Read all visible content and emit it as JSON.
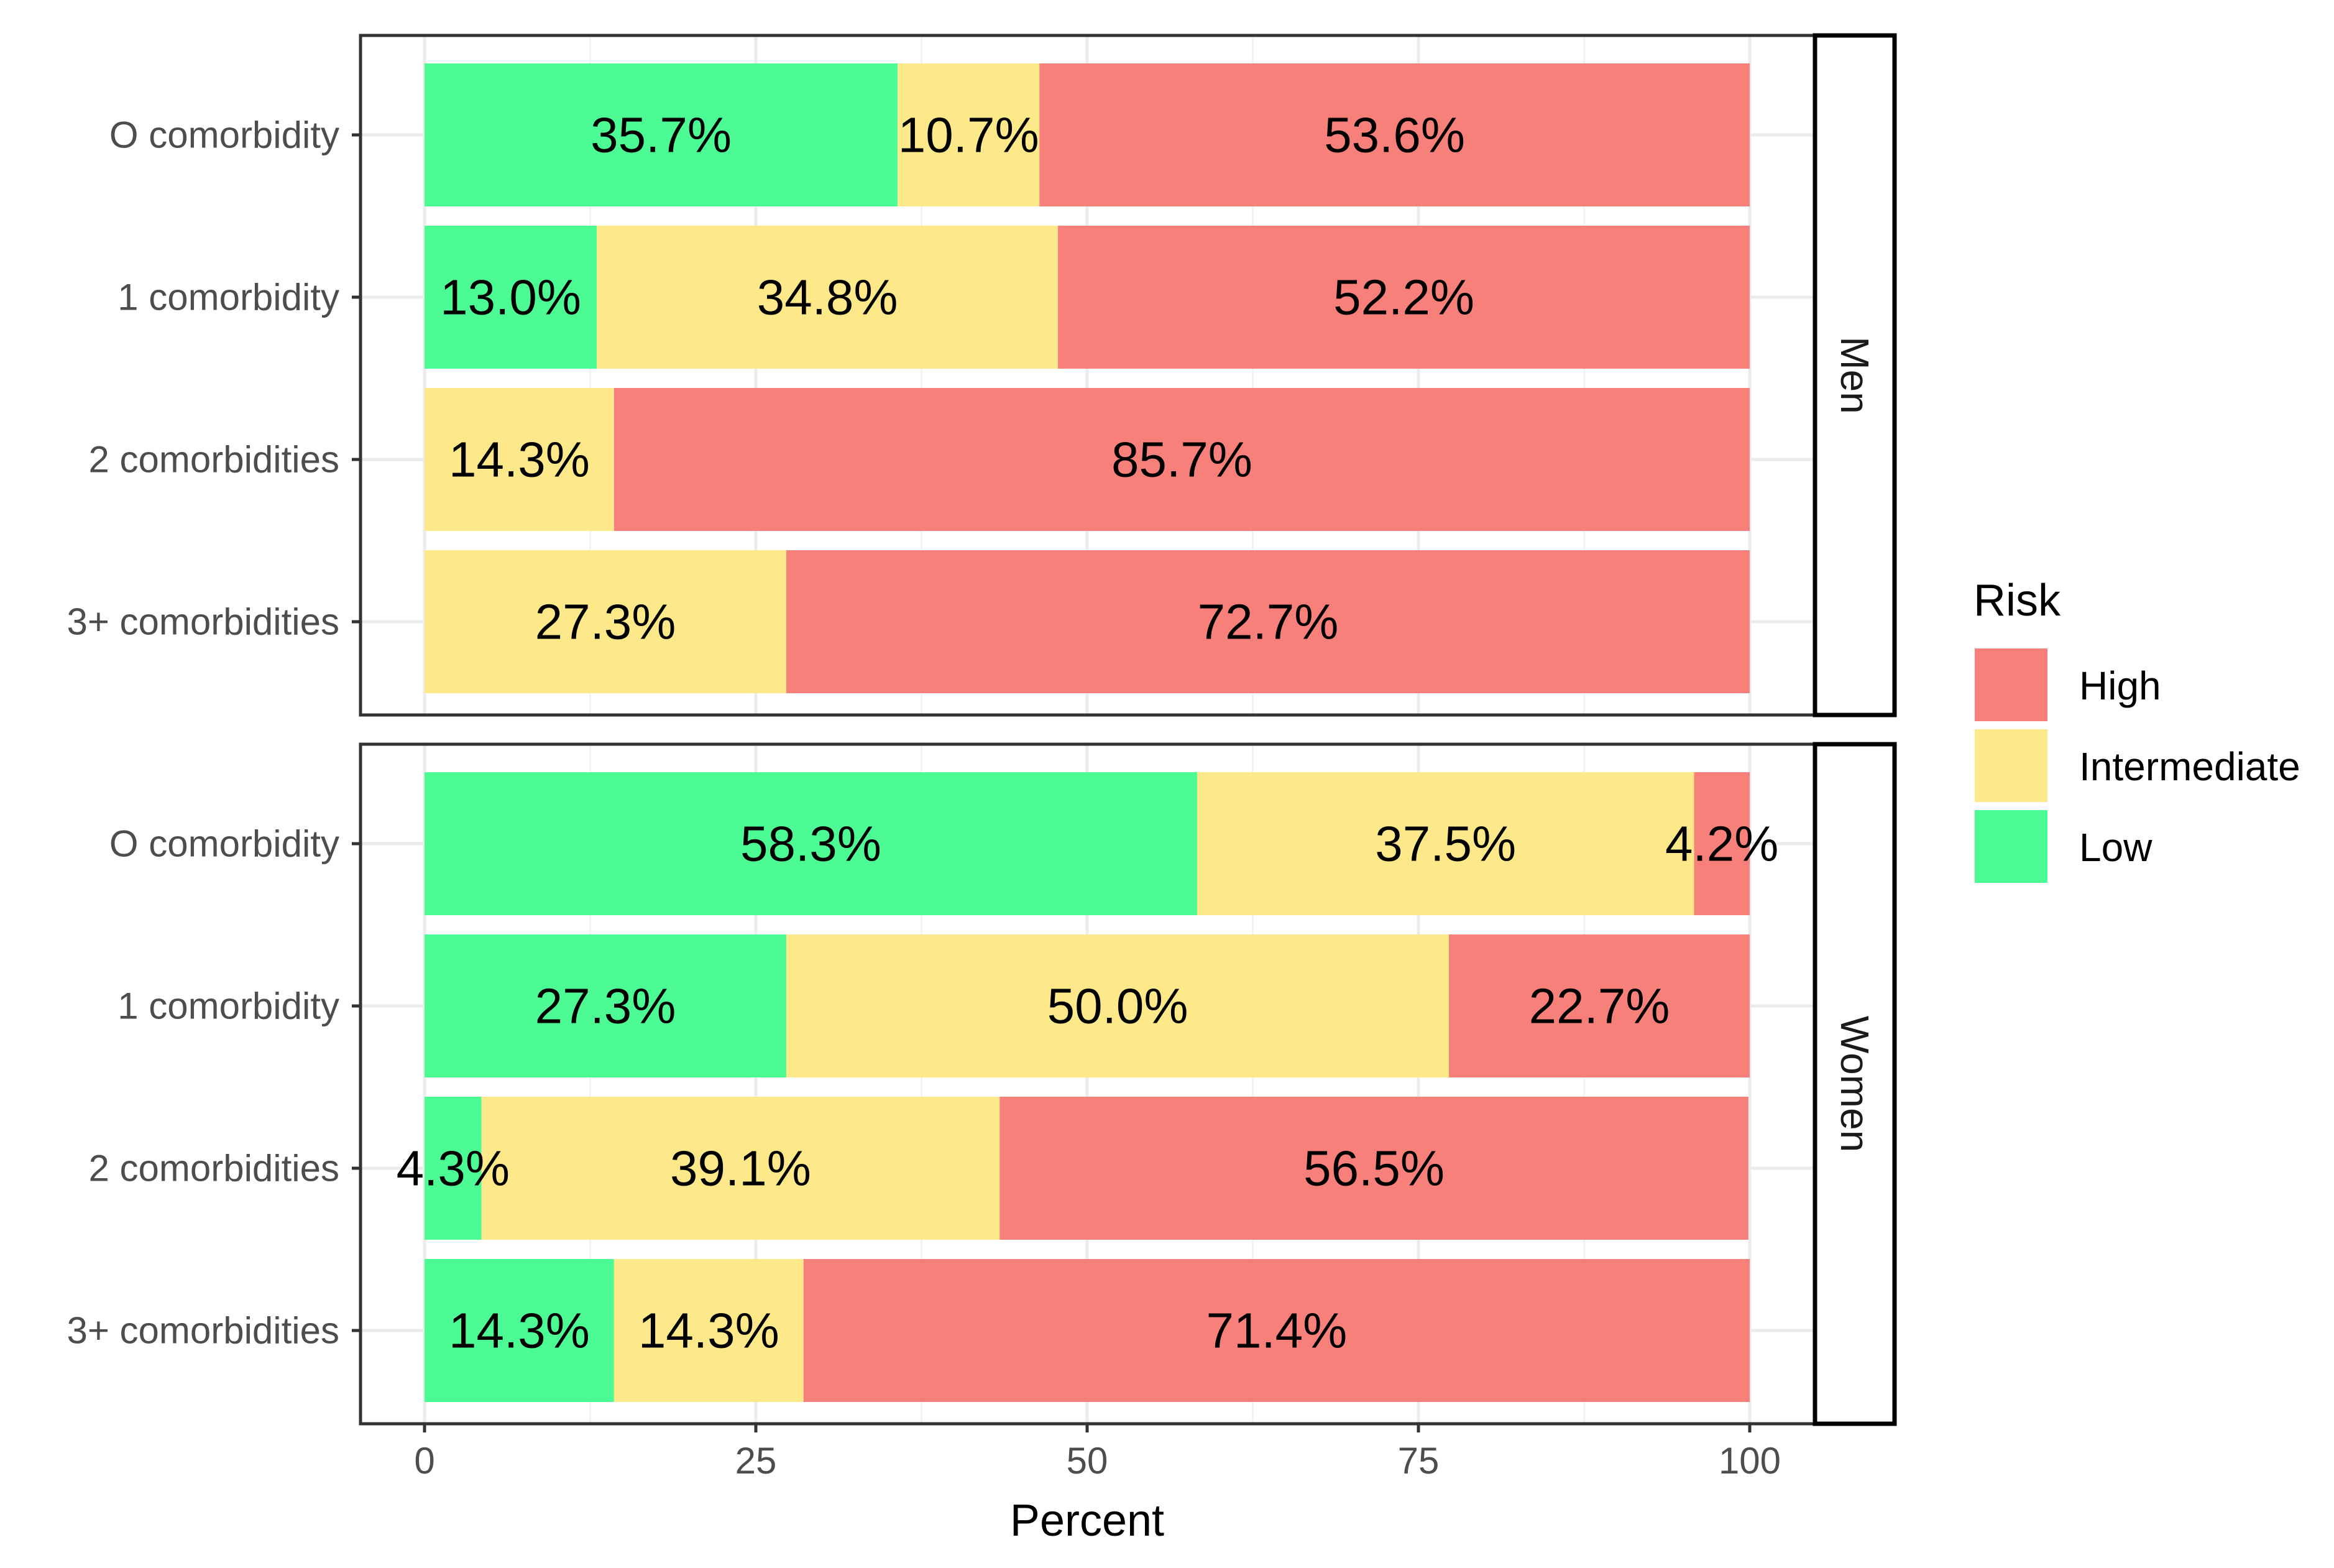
{
  "chart_data": {
    "type": "bar",
    "orientation": "horizontal",
    "stacked": true,
    "xlabel": "Percent",
    "ylabel": "",
    "xlim": [
      0,
      100
    ],
    "x_ticks": [
      0,
      25,
      50,
      75,
      100
    ],
    "grid": true,
    "legend": {
      "title": "Risk",
      "position": "right",
      "entries": [
        {
          "name": "High",
          "color": "#F8807A"
        },
        {
          "name": "Intermediate",
          "color": "#FDE98A"
        },
        {
          "name": "Low",
          "color": "#4DFB95"
        }
      ]
    },
    "categories": [
      "O comorbidity",
      "1 comorbidity",
      "2 comorbidities",
      "3+ comorbidities"
    ],
    "stack_order": [
      "Low",
      "Intermediate",
      "High"
    ],
    "facets": [
      {
        "name": "Men",
        "series": [
          {
            "name": "Low",
            "values": [
              35.7,
              13.0,
              0,
              0
            ],
            "labels": [
              "35.7%",
              "13.0%",
              "",
              ""
            ]
          },
          {
            "name": "Intermediate",
            "values": [
              10.7,
              34.8,
              14.3,
              27.3
            ],
            "labels": [
              "10.7%",
              "34.8%",
              "14.3%",
              "27.3%"
            ]
          },
          {
            "name": "High",
            "values": [
              53.6,
              52.2,
              85.7,
              72.7
            ],
            "labels": [
              "53.6%",
              "52.2%",
              "85.7%",
              "72.7%"
            ]
          }
        ]
      },
      {
        "name": "Women",
        "series": [
          {
            "name": "Low",
            "values": [
              58.3,
              27.3,
              4.3,
              14.3
            ],
            "labels": [
              "58.3%",
              "27.3%",
              "4.3%",
              "14.3%"
            ]
          },
          {
            "name": "Intermediate",
            "values": [
              37.5,
              50.0,
              39.1,
              14.3
            ],
            "labels": [
              "37.5%",
              "50.0%",
              "39.1%",
              "14.3%"
            ]
          },
          {
            "name": "High",
            "values": [
              4.2,
              22.7,
              56.5,
              71.4
            ],
            "labels": [
              "4.2%",
              "22.7%",
              "56.5%",
              "71.4%"
            ]
          }
        ]
      }
    ]
  }
}
